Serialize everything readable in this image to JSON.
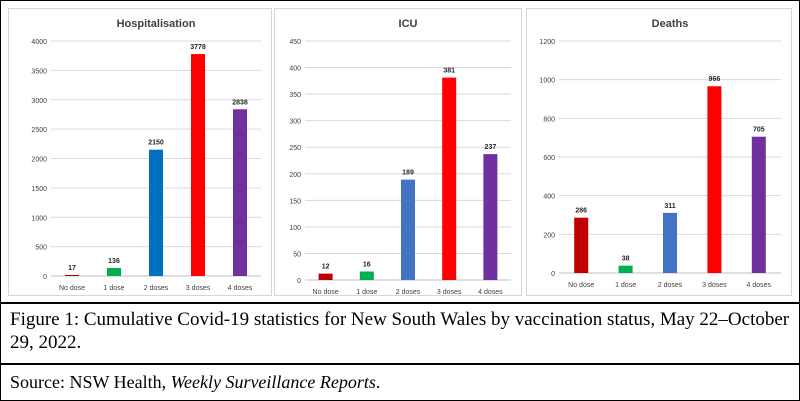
{
  "chart_data": [
    {
      "type": "bar",
      "title": "Hospitalisation",
      "categories": [
        "No dose",
        "1 dose",
        "2 doses",
        "3 doses",
        "4 doses"
      ],
      "values": [
        17,
        136,
        2150,
        3778,
        2838
      ],
      "colors": [
        "#c00000",
        "#00b050",
        "#0070c0",
        "#ff0000",
        "#7030a0"
      ],
      "ylim": [
        0,
        4000
      ],
      "yticks": [
        "0",
        "500",
        "1000",
        "1500",
        "2000",
        "2500",
        "3000",
        "3500",
        "4000"
      ],
      "grid": true
    },
    {
      "type": "bar",
      "title": "ICU",
      "categories": [
        "No dose",
        "1 dose",
        "2 doses",
        "3 doses",
        "4 doses"
      ],
      "values": [
        12,
        16,
        189,
        381,
        237
      ],
      "colors": [
        "#c00000",
        "#00b050",
        "#4472c4",
        "#ff0000",
        "#7030a0"
      ],
      "ylim": [
        0,
        450
      ],
      "yticks": [
        "0",
        "50",
        "100",
        "150",
        "200",
        "250",
        "300",
        "350",
        "400",
        "450"
      ],
      "grid": true
    },
    {
      "type": "bar",
      "title": "Deaths",
      "categories": [
        "No dose",
        "1 dose",
        "2 doses",
        "3 doses",
        "4 doses"
      ],
      "values": [
        286,
        38,
        311,
        966,
        705
      ],
      "colors": [
        "#c00000",
        "#00b050",
        "#4472c4",
        "#ff0000",
        "#7030a0"
      ],
      "ylim": [
        0,
        1200
      ],
      "yticks": [
        "0",
        "200",
        "400",
        "600",
        "800",
        "1000",
        "1200"
      ],
      "grid": true
    }
  ],
  "caption": {
    "figure": "Figure 1: Cumulative Covid-19 statistics for New South Wales by vaccination status, May 22–October 29, 2022.",
    "source_prefix": "Source: NSW Health, ",
    "source_title": "Weekly Surveillance Reports",
    "source_suffix": "."
  }
}
